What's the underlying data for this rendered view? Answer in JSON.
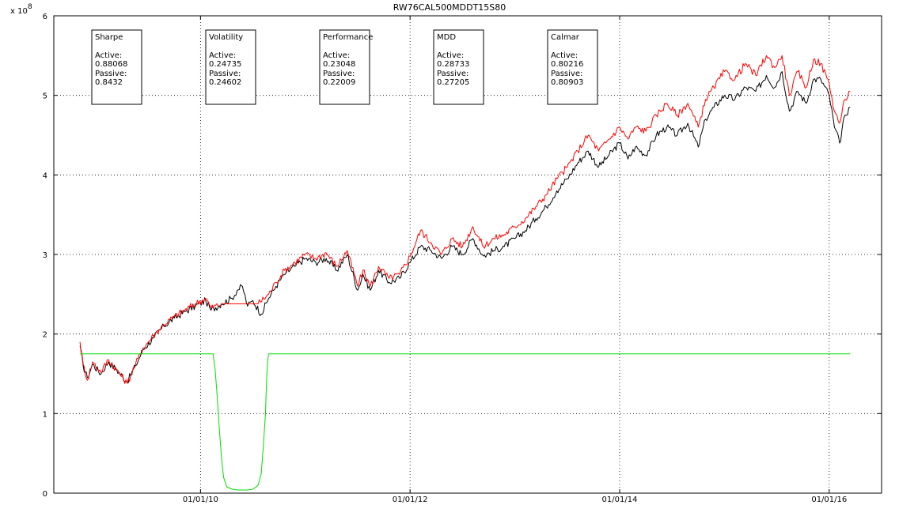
{
  "chart_data": {
    "type": "line",
    "title": "RW76CAL500MDDT15S80",
    "xlabel": "",
    "ylabel": "",
    "y_multiplier_label": "x 10",
    "y_multiplier_exponent": "8",
    "xlim": [
      2008.6,
      2016.5
    ],
    "ylim": [
      0,
      6
    ],
    "grid": true,
    "x_ticks": [
      {
        "value": 2010.0,
        "label": "01/01/10"
      },
      {
        "value": 2012.0,
        "label": "01/01/12"
      },
      {
        "value": 2014.0,
        "label": "01/01/14"
      },
      {
        "value": 2016.0,
        "label": "01/01/16"
      }
    ],
    "y_ticks": [
      {
        "value": 0,
        "label": "0"
      },
      {
        "value": 1,
        "label": "1"
      },
      {
        "value": 2,
        "label": "2"
      },
      {
        "value": 3,
        "label": "3"
      },
      {
        "value": 4,
        "label": "4"
      },
      {
        "value": 5,
        "label": "5"
      },
      {
        "value": 6,
        "label": "6"
      }
    ],
    "series": [
      {
        "color": "#000000",
        "x": [
          2008.85,
          2008.88,
          2008.92,
          2008.97,
          2009.05,
          2009.12,
          2009.2,
          2009.3,
          2009.38,
          2009.45,
          2009.55,
          2009.65,
          2009.75,
          2009.85,
          2009.95,
          2010.05,
          2010.1,
          2010.2,
          2010.3,
          2010.35,
          2010.4,
          2010.45,
          2010.5,
          2010.58,
          2010.65,
          2010.72,
          2010.8,
          2010.9,
          2011.0,
          2011.1,
          2011.2,
          2011.3,
          2011.4,
          2011.5,
          2011.55,
          2011.62,
          2011.7,
          2011.8,
          2011.9,
          2012.0,
          2012.1,
          2012.2,
          2012.3,
          2012.4,
          2012.5,
          2012.6,
          2012.7,
          2012.8,
          2012.9,
          2013.0,
          2013.1,
          2013.2,
          2013.3,
          2013.4,
          2013.5,
          2013.6,
          2013.7,
          2013.8,
          2013.9,
          2014.0,
          2014.08,
          2014.15,
          2014.25,
          2014.35,
          2014.45,
          2014.55,
          2014.65,
          2014.75,
          2014.82,
          2014.9,
          2015.0,
          2015.1,
          2015.2,
          2015.3,
          2015.4,
          2015.48,
          2015.55,
          2015.62,
          2015.7,
          2015.78,
          2015.85,
          2015.92,
          2016.0,
          2016.05,
          2016.1,
          2016.15,
          2016.2
        ],
        "y": [
          1.85,
          1.6,
          1.45,
          1.62,
          1.5,
          1.65,
          1.55,
          1.4,
          1.6,
          1.8,
          1.95,
          2.1,
          2.2,
          2.28,
          2.35,
          2.42,
          2.3,
          2.38,
          2.45,
          2.55,
          2.6,
          2.35,
          2.42,
          2.25,
          2.45,
          2.6,
          2.75,
          2.85,
          2.95,
          2.9,
          2.95,
          2.8,
          3.0,
          2.55,
          2.75,
          2.55,
          2.8,
          2.65,
          2.7,
          2.9,
          3.1,
          3.05,
          2.95,
          3.1,
          3.0,
          3.2,
          2.98,
          3.05,
          3.1,
          3.2,
          3.3,
          3.45,
          3.6,
          3.8,
          3.95,
          4.15,
          4.3,
          4.1,
          4.25,
          4.4,
          4.2,
          4.35,
          4.25,
          4.5,
          4.6,
          4.5,
          4.65,
          4.35,
          4.7,
          4.85,
          5.0,
          4.95,
          5.1,
          5.05,
          5.25,
          5.1,
          5.3,
          4.8,
          5.05,
          4.9,
          5.2,
          5.2,
          5.0,
          4.6,
          4.4,
          4.75,
          4.85
        ]
      },
      {
        "color": "#ff0000",
        "x": [
          2008.85,
          2008.88,
          2008.92,
          2008.97,
          2009.05,
          2009.12,
          2009.2,
          2009.3,
          2009.38,
          2009.45,
          2009.55,
          2009.65,
          2009.75,
          2009.85,
          2009.95,
          2010.05,
          2010.1,
          2010.2,
          2010.55,
          2010.65,
          2010.72,
          2010.8,
          2010.9,
          2011.0,
          2011.1,
          2011.2,
          2011.3,
          2011.4,
          2011.5,
          2011.55,
          2011.62,
          2011.7,
          2011.8,
          2011.9,
          2012.0,
          2012.1,
          2012.2,
          2012.3,
          2012.4,
          2012.5,
          2012.6,
          2012.7,
          2012.8,
          2012.9,
          2013.0,
          2013.1,
          2013.2,
          2013.3,
          2013.4,
          2013.5,
          2013.6,
          2013.7,
          2013.8,
          2013.9,
          2014.0,
          2014.08,
          2014.15,
          2014.25,
          2014.35,
          2014.45,
          2014.55,
          2014.65,
          2014.75,
          2014.82,
          2014.9,
          2015.0,
          2015.1,
          2015.2,
          2015.3,
          2015.4,
          2015.48,
          2015.55,
          2015.62,
          2015.7,
          2015.78,
          2015.85,
          2015.92,
          2016.0,
          2016.05,
          2016.1,
          2016.15,
          2016.2
        ],
        "y": [
          1.9,
          1.62,
          1.42,
          1.65,
          1.52,
          1.68,
          1.55,
          1.38,
          1.62,
          1.82,
          1.98,
          2.12,
          2.22,
          2.3,
          2.38,
          2.45,
          2.33,
          2.38,
          2.38,
          2.5,
          2.65,
          2.8,
          2.9,
          3.0,
          2.95,
          3.02,
          2.85,
          3.05,
          2.6,
          2.8,
          2.6,
          2.85,
          2.7,
          2.75,
          2.98,
          3.3,
          3.15,
          3.0,
          3.2,
          3.1,
          3.35,
          3.1,
          3.2,
          3.25,
          3.35,
          3.45,
          3.6,
          3.75,
          3.95,
          4.1,
          4.3,
          4.5,
          4.3,
          4.45,
          4.6,
          4.45,
          4.6,
          4.55,
          4.75,
          4.9,
          4.75,
          4.9,
          4.6,
          4.95,
          5.1,
          5.3,
          5.2,
          5.4,
          5.25,
          5.5,
          5.35,
          5.5,
          5.0,
          5.3,
          5.1,
          5.45,
          5.4,
          5.15,
          4.8,
          4.65,
          4.95,
          5.05
        ]
      },
      {
        "color": "#00dd00",
        "x": [
          2008.85,
          2010.12,
          2010.14,
          2010.16,
          2010.18,
          2010.2,
          2010.22,
          2010.25,
          2010.3,
          2010.35,
          2010.4,
          2010.45,
          2010.5,
          2010.55,
          2010.58,
          2010.6,
          2010.62,
          2010.63,
          2010.64,
          2010.65,
          2016.2
        ],
        "y": [
          1.75,
          1.75,
          1.55,
          1.2,
          0.8,
          0.45,
          0.2,
          0.08,
          0.05,
          0.04,
          0.04,
          0.04,
          0.05,
          0.1,
          0.25,
          0.6,
          1.0,
          1.4,
          1.65,
          1.75,
          1.75
        ]
      }
    ],
    "annotations": [
      {
        "title": "Sharpe",
        "line1": "Active:",
        "value1": "0.88068",
        "line2": "Passive:",
        "value2": "0.8432"
      },
      {
        "title": "Volatility",
        "line1": "Active:",
        "value1": "0.24735",
        "line2": "Passive:",
        "value2": "0.24602"
      },
      {
        "title": "Performance",
        "line1": "Active:",
        "value1": "0.23048",
        "line2": "Passive:",
        "value2": "0.22009"
      },
      {
        "title": "MDD",
        "line1": "Active:",
        "value1": "0.28733",
        "line2": "Passive:",
        "value2": "0.27205"
      },
      {
        "title": "Calmar",
        "line1": "Active:",
        "value1": "0.80216",
        "line2": "Passive:",
        "value2": "0.80903"
      }
    ]
  }
}
